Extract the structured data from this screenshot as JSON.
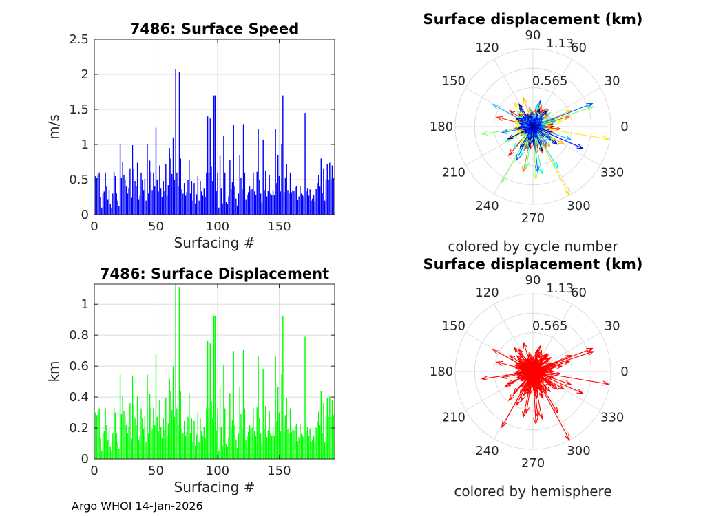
{
  "footer": "Argo WHOI 14-Jan-2026",
  "colors": {
    "speed_bars": "#0000ff",
    "displacement_bars": "#00ff00",
    "hemisphere": "#ff0000",
    "grid": "#dcdcdc",
    "axis": "#262626"
  },
  "chart_data": [
    {
      "id": "speed",
      "type": "bar",
      "title": "7486: Surface Speed",
      "xlabel": "Surfacing #",
      "ylabel": "m/s",
      "xlim": [
        0,
        195
      ],
      "ylim": [
        0,
        2.5
      ],
      "xticks": [
        "0",
        "50",
        "100",
        "150"
      ],
      "yticks": [
        "0",
        "0.5",
        "1",
        "1.5",
        "2",
        "2.5"
      ],
      "grid": true,
      "values": [
        0.55,
        0.52,
        0.57,
        0.6,
        0.25,
        0.1,
        0.3,
        0.33,
        0.6,
        0.4,
        0.22,
        0.35,
        0.15,
        0.1,
        0.3,
        0.61,
        0.55,
        0.3,
        0.2,
        0.12,
        1.0,
        0.53,
        0.75,
        0.57,
        0.5,
        0.4,
        0.3,
        0.38,
        0.66,
        0.24,
        0.99,
        0.65,
        0.48,
        0.4,
        0.74,
        0.22,
        0.27,
        0.6,
        0.49,
        0.35,
        0.51,
        0.2,
        1.0,
        0.3,
        0.77,
        0.61,
        0.35,
        0.6,
        0.4,
        1.24,
        0.5,
        0.33,
        0.7,
        0.38,
        0.25,
        0.48,
        0.34,
        0.72,
        0.27,
        0.42,
        0.95,
        0.8,
        0.58,
        1.1,
        0.5,
        2.07,
        0.6,
        0.4,
        2.04,
        0.8,
        0.36,
        0.3,
        0.45,
        0.27,
        0.32,
        0.5,
        0.78,
        0.3,
        0.48,
        0.2,
        0.45,
        0.16,
        0.29,
        0.55,
        0.2,
        0.48,
        0.33,
        0.27,
        0.38,
        0.25,
        0.6,
        1.4,
        0.6,
        1.37,
        0.68,
        0.48,
        1.7,
        1.7,
        0.34,
        0.6,
        0.1,
        0.84,
        0.38,
        0.16,
        1.12,
        0.6,
        0.18,
        0.15,
        0.26,
        0.78,
        0.37,
        0.46,
        1.28,
        0.4,
        0.23,
        0.13,
        0.3,
        0.85,
        0.53,
        0.36,
        1.29,
        0.6,
        0.22,
        0.28,
        0.32,
        0.4,
        0.35,
        0.37,
        0.6,
        0.33,
        0.28,
        0.61,
        1.22,
        0.49,
        0.3,
        0.17,
        1.07,
        0.35,
        0.63,
        0.26,
        0.34,
        0.57,
        0.3,
        0.28,
        0.35,
        0.28,
        1.22,
        0.45,
        0.85,
        0.55,
        0.33,
        1.01,
        1.7,
        0.32,
        0.52,
        0.72,
        0.35,
        0.3,
        0.6,
        0.32,
        0.35,
        0.34,
        0.39,
        0.41,
        0.21,
        0.26,
        0.41,
        0.3,
        0.28,
        0.26,
        1.45,
        0.33,
        0.38,
        0.27,
        0.36,
        0.2,
        0.23,
        0.28,
        0.19,
        0.37,
        0.45,
        0.56,
        0.4,
        0.8,
        0.31,
        0.66,
        0.2,
        0.5,
        0.72,
        0.5,
        0.74,
        0.5,
        0.7,
        0.52
      ]
    },
    {
      "id": "rose_cycle",
      "type": "scatter",
      "subtype": "polar-vectors",
      "title": "Surface displacement (km)",
      "subtitle": "colored by cycle number",
      "r_ticks": [
        "0.565",
        "1.13"
      ],
      "rmax": 1.13,
      "theta_ticks": [
        "0",
        "30",
        "60",
        "90",
        "120",
        "150",
        "180",
        "210",
        "240",
        "270",
        "300",
        "330"
      ]
    },
    {
      "id": "displacement",
      "type": "bar",
      "title": "7486: Surface Displacement",
      "xlabel": "Surfacing #",
      "ylabel": "km",
      "xlim": [
        0,
        195
      ],
      "ylim": [
        0,
        1.13
      ],
      "xticks": [
        "0",
        "50",
        "100",
        "150"
      ],
      "yticks": [
        "0",
        "0.2",
        "0.4",
        "0.6",
        "0.8",
        "1"
      ],
      "grid": true
    },
    {
      "id": "rose_hemisphere",
      "type": "scatter",
      "subtype": "polar-vectors",
      "title": "Surface displacement (km)",
      "subtitle": "colored by hemisphere",
      "r_ticks": [
        "0.565",
        "1.13"
      ],
      "rmax": 1.13,
      "theta_ticks": [
        "0",
        "30",
        "60",
        "90",
        "120",
        "150",
        "180",
        "210",
        "240",
        "270",
        "300",
        "330"
      ]
    }
  ]
}
